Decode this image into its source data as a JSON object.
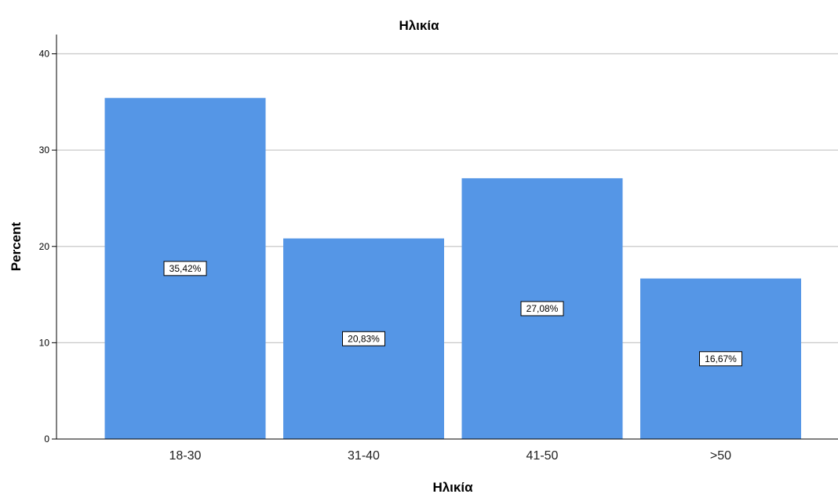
{
  "chart_data": {
    "type": "bar",
    "title": "Ηλικία",
    "xlabel": "Ηλικία",
    "ylabel": "Percent",
    "categories": [
      "18-30",
      "31-40",
      "41-50",
      ">50"
    ],
    "values": [
      35.42,
      20.83,
      27.08,
      16.67
    ],
    "data_labels": [
      "35,42%",
      "20,83%",
      "27,08%",
      "16,67%"
    ],
    "ylim": [
      0,
      42
    ],
    "yticks": [
      0,
      10,
      20,
      30,
      40
    ],
    "grid": true,
    "bar_color": "#5596e6",
    "gridline_color": "#c8c8c8"
  }
}
